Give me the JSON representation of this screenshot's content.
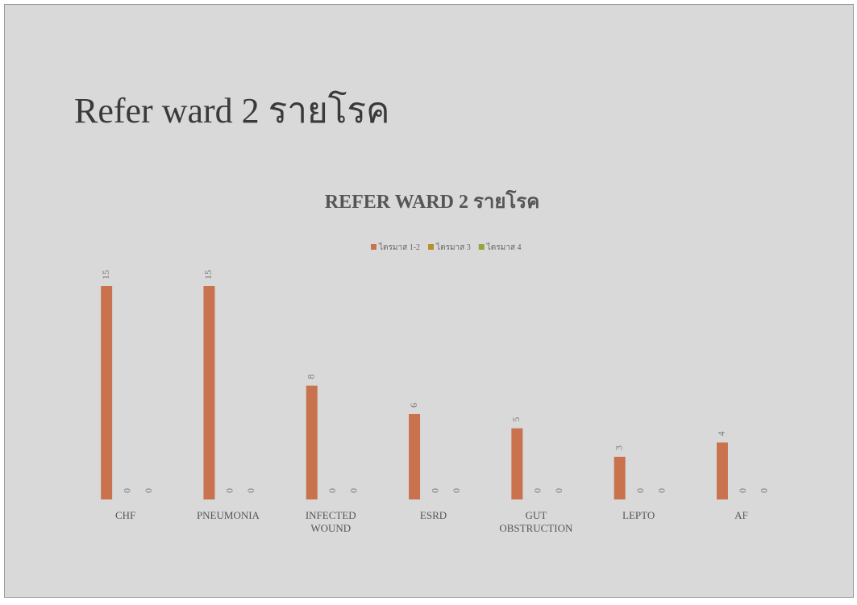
{
  "slide_title": "Refer ward 2 รายโรค",
  "chart_data": {
    "type": "bar",
    "title": "REFER WARD 2 รายโรค",
    "categories": [
      "CHF",
      "PNEUMONIA",
      "INFECTED WOUND",
      "ESRD",
      "GUT OBSTRUCTION",
      "LEPTO",
      "AF"
    ],
    "series": [
      {
        "name": "ไตรมาส 1-2",
        "color": "#c8734e",
        "values": [
          15,
          15,
          8,
          6,
          5,
          3,
          4
        ]
      },
      {
        "name": "ไตรมาส 3",
        "color": "#b8902a",
        "values": [
          0,
          0,
          0,
          0,
          0,
          0,
          0
        ]
      },
      {
        "name": "ไตรมาส 4",
        "color": "#8fa83a",
        "values": [
          0,
          0,
          0,
          0,
          0,
          0,
          0
        ]
      }
    ],
    "legend": "top",
    "data_labels": true
  }
}
